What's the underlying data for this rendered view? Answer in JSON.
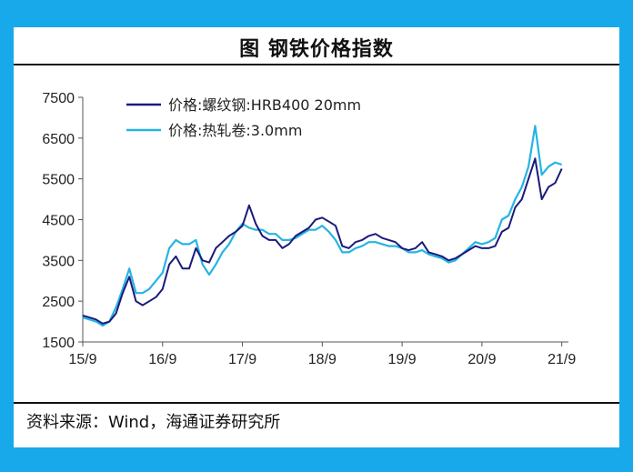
{
  "title": "图  钢铁价格指数",
  "source": "资料来源：Wind，海通证券研究所",
  "colors": {
    "background": "#17a9ea",
    "rebar": "#1a1a7a",
    "hrc": "#25b4e4"
  },
  "chart_data": {
    "type": "line",
    "title": "图  钢铁价格指数",
    "xlabel": "",
    "ylabel": "",
    "x_ticks": [
      "15/9",
      "16/9",
      "17/9",
      "18/9",
      "19/9",
      "20/9",
      "21/9"
    ],
    "y_ticks": [
      "1500",
      "2500",
      "3500",
      "4500",
      "5500",
      "6500",
      "7500"
    ],
    "xlim": [
      "2015-09",
      "2021-10"
    ],
    "ylim": [
      1500,
      7500
    ],
    "grid": false,
    "legend_position": "top-left",
    "series": [
      {
        "name": "价格:螺纹钢:HRB400 20mm",
        "color": "#1a1a7a",
        "x": [
          "2015-09",
          "2015-10",
          "2015-11",
          "2015-12",
          "2016-01",
          "2016-02",
          "2016-03",
          "2016-04",
          "2016-05",
          "2016-06",
          "2016-07",
          "2016-08",
          "2016-09",
          "2016-10",
          "2016-11",
          "2016-12",
          "2017-01",
          "2017-02",
          "2017-03",
          "2017-04",
          "2017-05",
          "2017-06",
          "2017-07",
          "2017-08",
          "2017-09",
          "2017-10",
          "2017-11",
          "2017-12",
          "2018-01",
          "2018-02",
          "2018-03",
          "2018-04",
          "2018-05",
          "2018-06",
          "2018-07",
          "2018-08",
          "2018-09",
          "2018-10",
          "2018-11",
          "2018-12",
          "2019-01",
          "2019-02",
          "2019-03",
          "2019-04",
          "2019-05",
          "2019-06",
          "2019-07",
          "2019-08",
          "2019-09",
          "2019-10",
          "2019-11",
          "2019-12",
          "2020-01",
          "2020-02",
          "2020-03",
          "2020-04",
          "2020-05",
          "2020-06",
          "2020-07",
          "2020-08",
          "2020-09",
          "2020-10",
          "2020-11",
          "2020-12",
          "2021-01",
          "2021-02",
          "2021-03",
          "2021-04",
          "2021-05",
          "2021-06",
          "2021-07",
          "2021-08",
          "2021-09"
        ],
        "values": [
          2150,
          2100,
          2050,
          1950,
          2000,
          2200,
          2700,
          3100,
          2500,
          2400,
          2500,
          2600,
          2800,
          3400,
          3600,
          3300,
          3300,
          3800,
          3500,
          3450,
          3800,
          3950,
          4100,
          4200,
          4350,
          4850,
          4400,
          4100,
          4000,
          4000,
          3800,
          3900,
          4100,
          4200,
          4300,
          4500,
          4550,
          4450,
          4350,
          3850,
          3800,
          3950,
          4000,
          4100,
          4150,
          4050,
          4000,
          3950,
          3800,
          3750,
          3800,
          3950,
          3700,
          3650,
          3600,
          3500,
          3550,
          3650,
          3750,
          3850,
          3800,
          3800,
          3850,
          4200,
          4300,
          4800,
          5000,
          5500,
          6000,
          5000,
          5300,
          5400,
          5750
        ]
      },
      {
        "name": "价格:热轧卷:3.0mm",
        "color": "#25b4e4",
        "x": [
          "2015-09",
          "2015-10",
          "2015-11",
          "2015-12",
          "2016-01",
          "2016-02",
          "2016-03",
          "2016-04",
          "2016-05",
          "2016-06",
          "2016-07",
          "2016-08",
          "2016-09",
          "2016-10",
          "2016-11",
          "2016-12",
          "2017-01",
          "2017-02",
          "2017-03",
          "2017-04",
          "2017-05",
          "2017-06",
          "2017-07",
          "2017-08",
          "2017-09",
          "2017-10",
          "2017-11",
          "2017-12",
          "2018-01",
          "2018-02",
          "2018-03",
          "2018-04",
          "2018-05",
          "2018-06",
          "2018-07",
          "2018-08",
          "2018-09",
          "2018-10",
          "2018-11",
          "2018-12",
          "2019-01",
          "2019-02",
          "2019-03",
          "2019-04",
          "2019-05",
          "2019-06",
          "2019-07",
          "2019-08",
          "2019-09",
          "2019-10",
          "2019-11",
          "2019-12",
          "2020-01",
          "2020-02",
          "2020-03",
          "2020-04",
          "2020-05",
          "2020-06",
          "2020-07",
          "2020-08",
          "2020-09",
          "2020-10",
          "2020-11",
          "2020-12",
          "2021-01",
          "2021-02",
          "2021-03",
          "2021-04",
          "2021-05",
          "2021-06",
          "2021-07",
          "2021-08",
          "2021-09"
        ],
        "values": [
          2100,
          2050,
          2000,
          1900,
          2000,
          2350,
          2800,
          3300,
          2700,
          2700,
          2800,
          3000,
          3200,
          3800,
          4000,
          3900,
          3900,
          4000,
          3400,
          3150,
          3400,
          3700,
          3900,
          4200,
          4400,
          4300,
          4250,
          4250,
          4150,
          4150,
          4000,
          4000,
          4050,
          4150,
          4250,
          4250,
          4350,
          4200,
          4000,
          3700,
          3700,
          3800,
          3850,
          3950,
          3950,
          3900,
          3850,
          3850,
          3800,
          3700,
          3700,
          3750,
          3650,
          3600,
          3550,
          3450,
          3500,
          3650,
          3800,
          3950,
          3900,
          3950,
          4050,
          4500,
          4600,
          5000,
          5300,
          5800,
          6800,
          5600,
          5800,
          5900,
          5850
        ]
      }
    ]
  }
}
